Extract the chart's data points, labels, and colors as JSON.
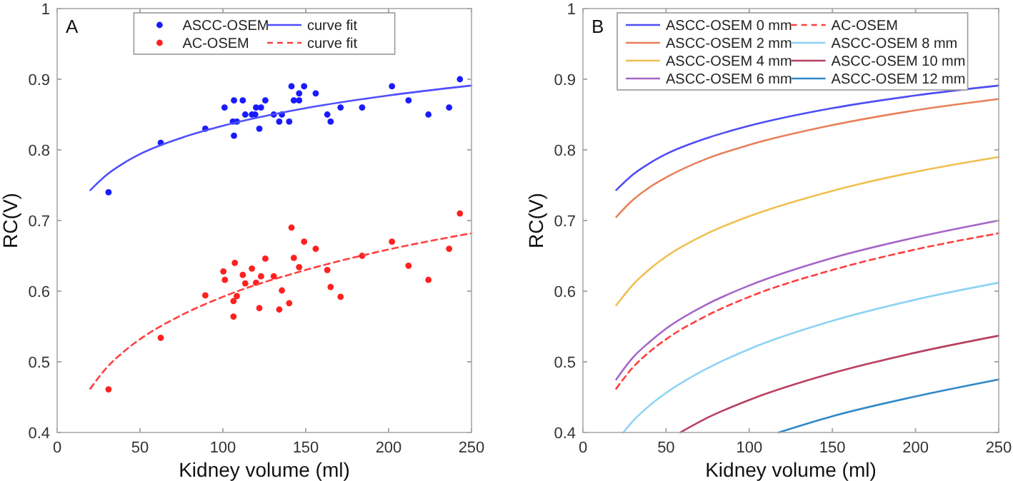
{
  "chart_data": [
    {
      "type": "scatter",
      "xlabel": "Kidney volume (ml)",
      "ylabel": "RC(V)",
      "annotations": [
        "A"
      ],
      "xlim": [
        0,
        250
      ],
      "ylim": [
        0.4,
        1
      ],
      "xticks": [
        0,
        50,
        100,
        150,
        200,
        250
      ],
      "yticks": [
        0.4,
        0.5,
        0.6,
        0.7,
        0.8,
        0.9,
        1
      ],
      "legend": "top",
      "grid": false,
      "series": [
        {
          "name": "ASCC-OSEM",
          "marker": "circle",
          "color": "#1a1aff",
          "x": [
            31,
            62.5,
            89.4,
            101,
            106.7,
            106,
            106.7,
            108.4,
            112,
            113.5,
            117.5,
            119.5,
            120,
            122,
            123,
            125.6,
            130.7,
            134,
            135.6,
            140,
            141.4,
            142.8,
            146,
            146,
            149,
            156,
            163,
            165,
            171,
            184,
            202,
            212,
            224,
            236.5,
            243
          ],
          "values": [
            0.74,
            0.81,
            0.83,
            0.86,
            0.87,
            0.84,
            0.82,
            0.84,
            0.87,
            0.85,
            0.85,
            0.85,
            0.86,
            0.83,
            0.86,
            0.87,
            0.85,
            0.84,
            0.85,
            0.84,
            0.89,
            0.87,
            0.88,
            0.87,
            0.89,
            0.88,
            0.85,
            0.84,
            0.86,
            0.86,
            0.89,
            0.87,
            0.85,
            0.86,
            0.9
          ]
        },
        {
          "name": "AC-OSEM",
          "marker": "circle",
          "color": "#ff2020",
          "x": [
            31,
            62.5,
            89.4,
            100.3,
            101.2,
            107.2,
            106.4,
            106.4,
            108.4,
            112,
            113.5,
            117.5,
            120,
            122,
            123,
            125.6,
            130.7,
            134,
            135.6,
            140,
            141.4,
            142.8,
            146,
            149,
            156,
            163,
            165,
            171,
            184,
            202,
            212,
            224,
            236.5,
            243
          ],
          "values": [
            0.461,
            0.534,
            0.594,
            0.628,
            0.616,
            0.64,
            0.586,
            0.564,
            0.593,
            0.623,
            0.611,
            0.632,
            0.612,
            0.576,
            0.621,
            0.646,
            0.621,
            0.574,
            0.601,
            0.583,
            0.69,
            0.647,
            0.634,
            0.67,
            0.66,
            0.63,
            0.606,
            0.592,
            0.65,
            0.67,
            0.636,
            0.616,
            0.66,
            0.71
          ]
        },
        {
          "name": "curve fit",
          "type": "line",
          "line_style": "solid",
          "color": "#4f4fff",
          "x": [
            20,
            30,
            40,
            50,
            75,
            100,
            150,
            200,
            250
          ],
          "values": [
            0.743,
            0.765,
            0.781,
            0.794,
            0.817,
            0.834,
            0.859,
            0.877,
            0.891
          ]
        },
        {
          "name": "curve fit",
          "type": "line",
          "line_style": "dashed",
          "color": "#ff4040",
          "x": [
            20,
            30,
            40,
            50,
            75,
            100,
            150,
            200,
            250
          ],
          "values": [
            0.462,
            0.492,
            0.514,
            0.532,
            0.566,
            0.592,
            0.63,
            0.659,
            0.682
          ]
        }
      ]
    },
    {
      "type": "line",
      "xlabel": "Kidney volume (ml)",
      "ylabel": "RC(V)",
      "annotations": [
        "B"
      ],
      "xlim": [
        0,
        250
      ],
      "ylim": [
        0.4,
        1
      ],
      "xticks": [
        0,
        50,
        100,
        150,
        200,
        250
      ],
      "yticks": [
        0.4,
        0.5,
        0.6,
        0.7,
        0.8,
        0.9,
        1
      ],
      "legend": "top",
      "grid": false,
      "series": [
        {
          "name": "ASCC-OSEM 0 mm",
          "line_style": "solid",
          "color": "#4d4df5",
          "x": [
            20,
            30,
            40,
            50,
            75,
            100,
            150,
            200,
            250
          ],
          "values": [
            0.743,
            0.765,
            0.781,
            0.794,
            0.817,
            0.834,
            0.859,
            0.877,
            0.891
          ]
        },
        {
          "name": "ASCC-OSEM 2 mm",
          "line_style": "solid",
          "color": "#e8805a",
          "x": [
            20,
            30,
            40,
            50,
            75,
            100,
            150,
            200,
            250
          ],
          "values": [
            0.705,
            0.729,
            0.747,
            0.761,
            0.788,
            0.807,
            0.835,
            0.856,
            0.872
          ]
        },
        {
          "name": "ASCC-OSEM 4 mm",
          "line_style": "solid",
          "color": "#f0c050",
          "x": [
            20,
            30,
            40,
            50,
            75,
            100,
            150,
            200,
            250
          ],
          "values": [
            0.58,
            0.609,
            0.631,
            0.649,
            0.682,
            0.706,
            0.742,
            0.769,
            0.79
          ]
        },
        {
          "name": "ASCC-OSEM 6 mm",
          "line_style": "solid",
          "color": "#a565c8",
          "x": [
            20,
            30,
            40,
            50,
            75,
            100,
            150,
            200,
            250
          ],
          "values": [
            0.475,
            0.506,
            0.528,
            0.547,
            0.582,
            0.608,
            0.647,
            0.676,
            0.7
          ]
        },
        {
          "name": "AC-OSEM",
          "line_style": "dashed",
          "color": "#ff4040",
          "x": [
            20,
            30,
            40,
            50,
            75,
            100,
            150,
            200,
            250
          ],
          "values": [
            0.462,
            0.492,
            0.514,
            0.532,
            0.566,
            0.592,
            0.63,
            0.659,
            0.682
          ]
        },
        {
          "name": "ASCC-OSEM 8 mm",
          "line_style": "solid",
          "color": "#8dd3f5",
          "x": [
            24.3,
            30,
            40,
            50,
            75,
            100,
            150,
            200,
            250
          ],
          "values": [
            0.4,
            0.416,
            0.438,
            0.456,
            0.491,
            0.518,
            0.558,
            0.588,
            0.612
          ]
        },
        {
          "name": "ASCC-OSEM 10 mm",
          "line_style": "solid",
          "color": "#b84060",
          "x": [
            58.6,
            75,
            100,
            150,
            200,
            250
          ],
          "values": [
            0.4,
            0.421,
            0.446,
            0.484,
            0.513,
            0.537
          ]
        },
        {
          "name": "ASCC-OSEM 12 mm",
          "line_style": "solid",
          "color": "#2f88c8",
          "x": [
            117.7,
            150,
            200,
            250
          ],
          "values": [
            0.4,
            0.423,
            0.451,
            0.475
          ]
        }
      ]
    }
  ]
}
